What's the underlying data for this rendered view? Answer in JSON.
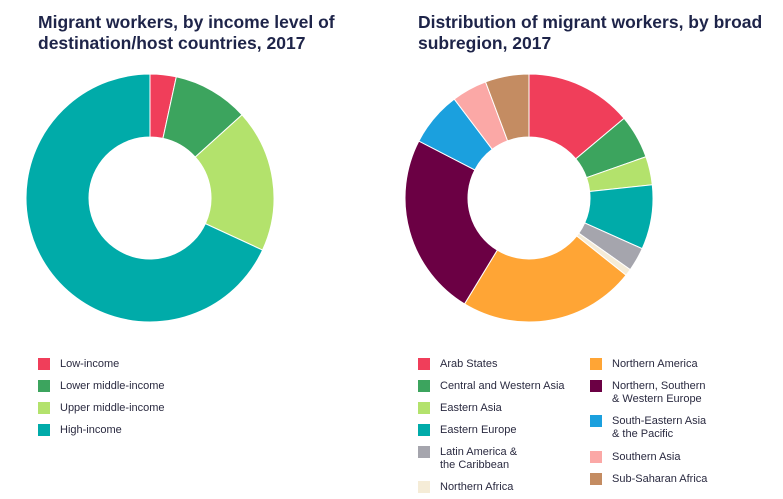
{
  "chart_data": [
    {
      "type": "pie",
      "donut": true,
      "title": "Migrant workers, by income level of\ndestination/host countries, 2017",
      "categories": [
        "Low-income",
        "Lower middle-income",
        "Upper middle-income",
        "High-income"
      ],
      "values": [
        3.4,
        9.9,
        18.6,
        68.1
      ],
      "unit": "%",
      "colors": [
        "#f03e5a",
        "#3ca45e",
        "#b3e26c",
        "#00aba9"
      ],
      "legend": "bottom"
    },
    {
      "type": "pie",
      "donut": true,
      "title": "Distribution of migrant workers, by broad\nsubregion, 2017",
      "categories": [
        "Arab States",
        "Central and Western Asia",
        "Eastern Asia",
        "Eastern Europe",
        "Latin America &\nthe Caribbean",
        "Northern Africa",
        "Northern America",
        "Northern, Southern\n& Western Europe",
        "South-Eastern Asia\n& the Pacific",
        "Southern Asia",
        "Sub-Saharan Africa"
      ],
      "values": [
        13.9,
        5.7,
        3.7,
        8.4,
        3.1,
        0.9,
        23.0,
        23.9,
        7.1,
        4.6,
        5.7
      ],
      "unit": "%",
      "colors": [
        "#f03e5a",
        "#3ca45e",
        "#b3e26c",
        "#00aba9",
        "#a5a5ad",
        "#f5ecd7",
        "#ffa535",
        "#6b0044",
        "#1ba0de",
        "#fba8a6",
        "#c48c62"
      ],
      "legend": "bottom"
    }
  ]
}
